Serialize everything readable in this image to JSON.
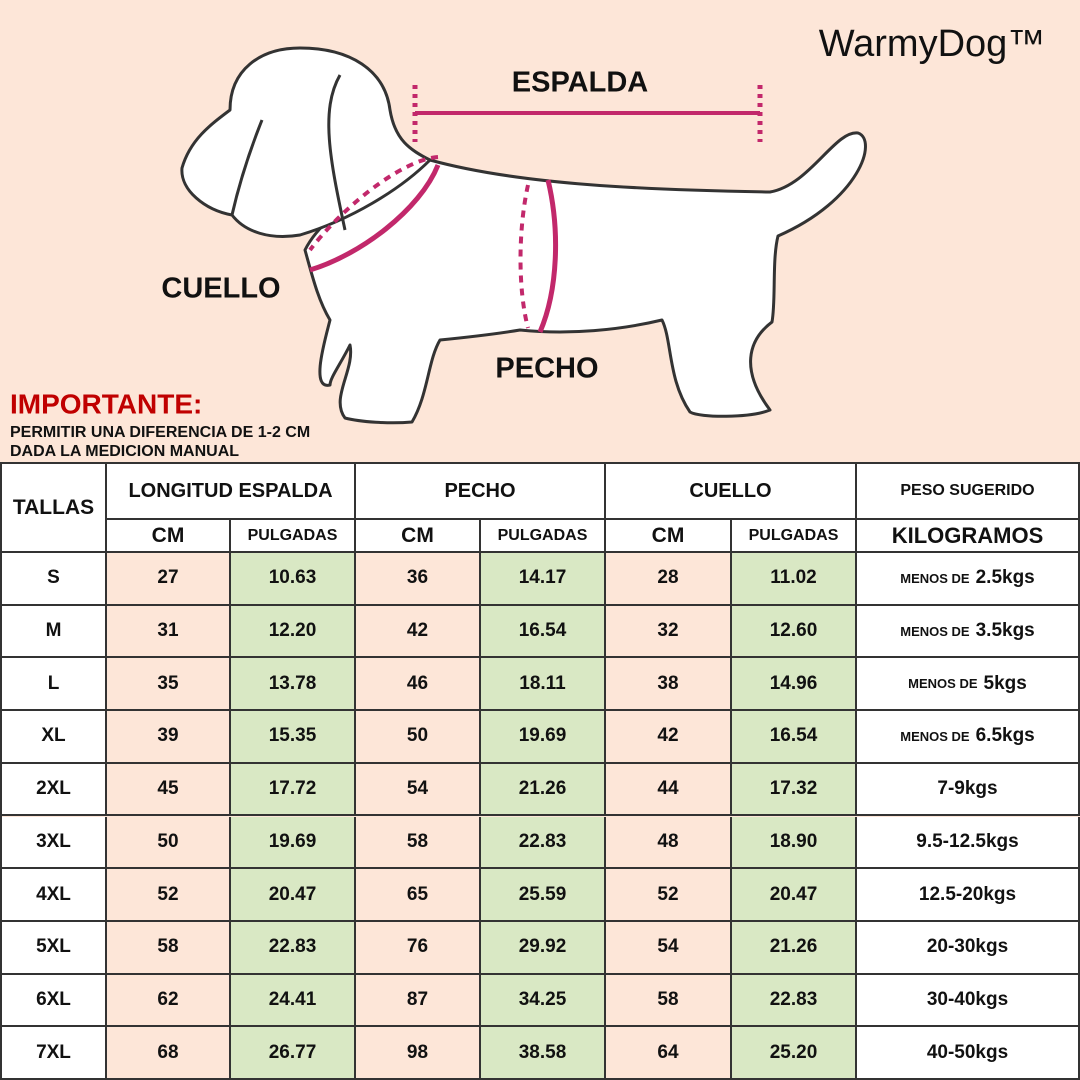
{
  "brand": "WarmyDog™",
  "diagram": {
    "espalda": "ESPALDA",
    "cuello": "CUELLO",
    "pecho": "PECHO"
  },
  "important": {
    "title": "IMPORTANTE:",
    "lines": [
      "PERMITIR UNA DIFERENCIA DE 1-2 CM",
      "DADA LA MEDICION MANUAL"
    ]
  },
  "table": {
    "size_header": "TALLAS",
    "groups": [
      "LONGITUD ESPALDA",
      "PECHO",
      "CUELLO",
      "PESO SUGERIDO"
    ],
    "subheaders": [
      "CM",
      "PULGADAS",
      "CM",
      "PULGADAS",
      "CM",
      "PULGADAS",
      "KILOGRAMOS"
    ],
    "rows": [
      {
        "size": "S",
        "cells": [
          "27",
          "10.63",
          "36",
          "14.17",
          "28",
          "11.02"
        ],
        "weight_prefix": "MENOS DE",
        "weight": "2.5kgs"
      },
      {
        "size": "M",
        "cells": [
          "31",
          "12.20",
          "42",
          "16.54",
          "32",
          "12.60"
        ],
        "weight_prefix": "MENOS DE",
        "weight": "3.5kgs"
      },
      {
        "size": "L",
        "cells": [
          "35",
          "13.78",
          "46",
          "18.11",
          "38",
          "14.96"
        ],
        "weight_prefix": "MENOS DE",
        "weight": "5kgs"
      },
      {
        "size": "XL",
        "cells": [
          "39",
          "15.35",
          "50",
          "19.69",
          "42",
          "16.54"
        ],
        "weight_prefix": "MENOS DE",
        "weight": "6.5kgs"
      },
      {
        "size": "2XL",
        "cells": [
          "45",
          "17.72",
          "54",
          "21.26",
          "44",
          "17.32"
        ],
        "weight": "7-9kgs"
      },
      {
        "size": "3XL",
        "cells": [
          "50",
          "19.69",
          "58",
          "22.83",
          "48",
          "18.90"
        ],
        "weight": "9.5-12.5kgs"
      },
      {
        "size": "4XL",
        "cells": [
          "52",
          "20.47",
          "65",
          "25.59",
          "52",
          "20.47"
        ],
        "weight": "12.5-20kgs"
      },
      {
        "size": "5XL",
        "cells": [
          "58",
          "22.83",
          "76",
          "29.92",
          "54",
          "21.26"
        ],
        "weight": "20-30kgs"
      },
      {
        "size": "6XL",
        "cells": [
          "62",
          "24.41",
          "87",
          "34.25",
          "58",
          "22.83"
        ],
        "weight": "30-40kgs"
      },
      {
        "size": "7XL",
        "cells": [
          "68",
          "26.77",
          "98",
          "38.58",
          "64",
          "25.20"
        ],
        "weight": "40-50kgs"
      }
    ]
  }
}
